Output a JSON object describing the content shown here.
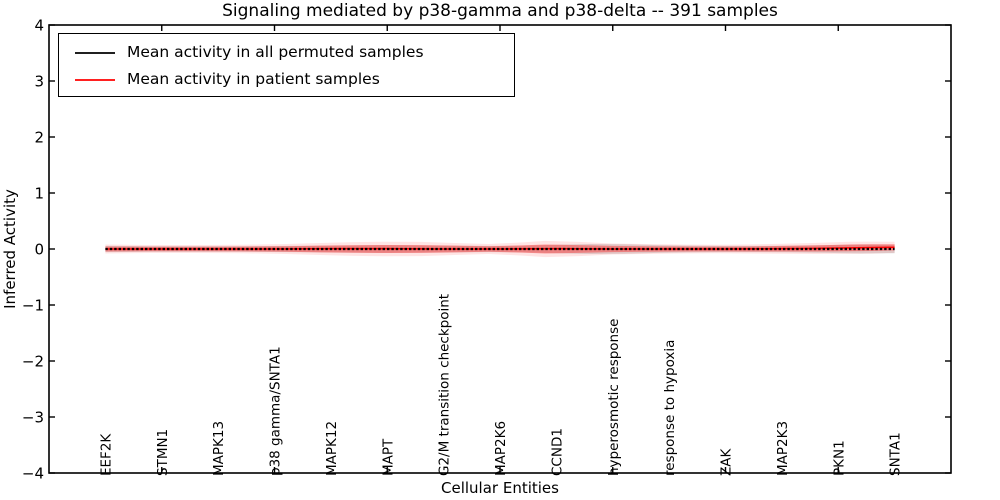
{
  "chart_data": {
    "type": "line",
    "title": "Signaling mediated by p38-gamma and p38-delta -- 391 samples",
    "xlabel": "Cellular Entities",
    "ylabel": "Inferred Activity",
    "ylim": [
      -4,
      4
    ],
    "xlim": [
      0,
      80
    ],
    "grid": false,
    "legend_position": "upper left",
    "y_ticks": [
      {
        "value": 4,
        "label": "4"
      },
      {
        "value": 3,
        "label": "3"
      },
      {
        "value": 2,
        "label": "2"
      },
      {
        "value": 1,
        "label": "1"
      },
      {
        "value": 0,
        "label": "0"
      },
      {
        "value": -1,
        "label": "−1"
      },
      {
        "value": -2,
        "label": "−2"
      },
      {
        "value": -3,
        "label": "−3"
      },
      {
        "value": -4,
        "label": "−4"
      }
    ],
    "x_tick_units": [
      10,
      20,
      30,
      40,
      50,
      60,
      70
    ],
    "categories": [
      "EEF2K",
      "STMN1",
      "MAPK13",
      "p38 gamma/SNTA1",
      "MAPK12",
      "MAPT",
      "G2/M transition checkpoint",
      "MAP2K6",
      "CCND1",
      "hyperosmotic response",
      "response to hypoxia",
      "ZAK",
      "MAP2K3",
      "PKN1",
      "SNTA1"
    ],
    "category_units": [
      5,
      10,
      15,
      20,
      25,
      30,
      35,
      40,
      45,
      50,
      55,
      60,
      65,
      70,
      75
    ],
    "series": [
      {
        "name": "Mean activity in all permuted samples",
        "color": "#000000",
        "linestyle": "dotted",
        "x_units": [
          5,
          75
        ],
        "values": [
          0,
          0
        ]
      },
      {
        "name": "Mean activity in patient samples",
        "color": "#ff0000",
        "linestyle": "solid",
        "x_units": [
          5,
          10,
          15,
          20,
          25,
          30,
          35,
          40,
          45,
          50,
          55,
          60,
          65,
          68,
          71,
          73,
          75
        ],
        "values": [
          0,
          0,
          0,
          0,
          0.005,
          0.005,
          0,
          0,
          0.005,
          0,
          0,
          0,
          0.005,
          0.01,
          0.02,
          0.025,
          0.03
        ]
      }
    ],
    "bands": [
      {
        "name": "permuted-std-band",
        "color": "#999999",
        "opacity": 0.32,
        "scale": 1,
        "x": [
          5,
          9,
          13,
          17,
          21,
          24,
          27,
          30,
          33,
          36,
          39,
          42,
          45,
          48,
          51,
          54,
          57,
          60,
          63,
          66,
          69,
          72,
          75
        ],
        "half": [
          0.055,
          0.05,
          0.048,
          0.05,
          0.055,
          0.06,
          0.065,
          0.07,
          0.065,
          0.06,
          0.055,
          0.06,
          0.075,
          0.09,
          0.085,
          0.07,
          0.06,
          0.055,
          0.055,
          0.06,
          0.07,
          0.08,
          0.075
        ]
      },
      {
        "name": "patient-std-band-outer",
        "color": "#ff0000",
        "opacity": 0.1,
        "scale": 1.8,
        "x": [
          5,
          9,
          13,
          17,
          21,
          24,
          27,
          30,
          33,
          36,
          39,
          42,
          44,
          47,
          50,
          53,
          56,
          59,
          62,
          65,
          68,
          71,
          73,
          75
        ],
        "half": [
          0.045,
          0.04,
          0.04,
          0.042,
          0.05,
          0.06,
          0.068,
          0.072,
          0.07,
          0.06,
          0.05,
          0.065,
          0.08,
          0.07,
          0.055,
          0.05,
          0.045,
          0.042,
          0.045,
          0.05,
          0.055,
          0.06,
          0.06,
          0.055
        ],
        "center": [
          0,
          0,
          0,
          0,
          0,
          0,
          0,
          0,
          0,
          0,
          0,
          0,
          0,
          0,
          0,
          0,
          0,
          0,
          0,
          0.005,
          0.01,
          0.02,
          0.025,
          0.03
        ]
      },
      {
        "name": "patient-std-band",
        "color": "#ff0000",
        "opacity": 0.35,
        "scale": 1,
        "x": [
          5,
          9,
          13,
          17,
          21,
          24,
          27,
          30,
          33,
          36,
          39,
          42,
          44,
          47,
          50,
          53,
          56,
          59,
          62,
          65,
          68,
          71,
          73,
          75
        ],
        "half": [
          0.045,
          0.04,
          0.04,
          0.042,
          0.05,
          0.06,
          0.068,
          0.072,
          0.07,
          0.06,
          0.05,
          0.065,
          0.08,
          0.07,
          0.055,
          0.05,
          0.045,
          0.042,
          0.045,
          0.05,
          0.055,
          0.06,
          0.06,
          0.055
        ],
        "center": [
          0,
          0,
          0,
          0,
          0,
          0,
          0,
          0,
          0,
          0,
          0,
          0,
          0,
          0,
          0,
          0,
          0,
          0,
          0,
          0.005,
          0.01,
          0.02,
          0.025,
          0.03
        ]
      }
    ]
  }
}
